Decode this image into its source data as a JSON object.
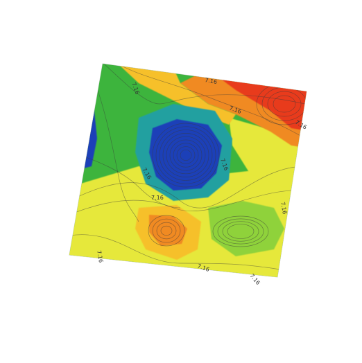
{
  "chart_data": {
    "type": "heatmap",
    "title": "",
    "xlabel": "",
    "ylabel": "",
    "grid": false,
    "legend": "none",
    "contour_levels_labeled": [
      "7.16",
      "7.16",
      "7.16",
      "7.16",
      "7.16",
      "7.16",
      "7.16",
      "7.16",
      "7.16",
      "7.16",
      "7.16"
    ],
    "colormap": [
      "#1f3fb8",
      "#23a0a0",
      "#3cb43c",
      "#8fd23a",
      "#e6e83a",
      "#f6c02c",
      "#f08a22",
      "#e83a1e"
    ],
    "features": [
      {
        "kind": "minimum",
        "color": "#1f3fb8",
        "label": "low"
      },
      {
        "kind": "maximum",
        "color": "#e83a1e",
        "label": "high"
      },
      {
        "kind": "maximum",
        "color": "#f07a22",
        "label": "local high"
      },
      {
        "kind": "minimum",
        "color": "#8fd23a",
        "label": "local low"
      }
    ]
  }
}
